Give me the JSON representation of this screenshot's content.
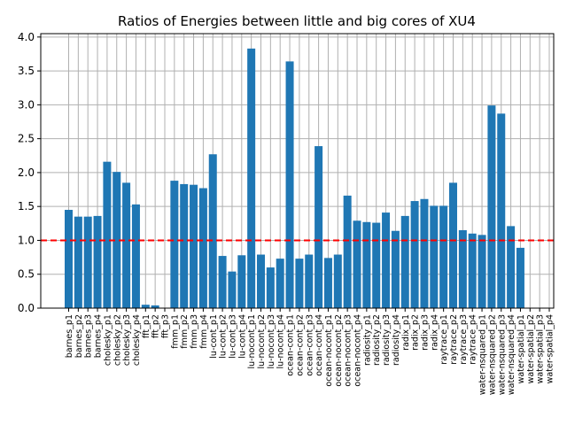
{
  "chart_data": {
    "type": "bar",
    "title": "Ratios of Energies between little and big cores of XU4",
    "xlabel": "",
    "ylabel": "",
    "ylim": [
      0,
      4.05
    ],
    "yticks": [
      "0.0",
      "0.5",
      "1.0",
      "1.5",
      "2.0",
      "2.5",
      "3.0",
      "3.5",
      "4.0"
    ],
    "grid": true,
    "bar_color": "#1f77b4",
    "reference_line": {
      "y": 1.0,
      "color": "#ff0000",
      "style": "dashed"
    },
    "categories": [
      "barnes_p1",
      "barnes_p2",
      "barnes_p3",
      "barnes_p4",
      "cholesky_p1",
      "cholesky_p2",
      "cholesky_p3",
      "cholesky_p4",
      "fft_p1",
      "fft_p2",
      "fft_p3",
      "fmm_p1",
      "fmm_p2",
      "fmm_p3",
      "fmm_p4",
      "lu-cont_p1",
      "lu-cont_p2",
      "lu-cont_p3",
      "lu-cont_p4",
      "lu-nocont_p1",
      "lu-nocont_p2",
      "lu-nocont_p3",
      "lu-nocont_p4",
      "ocean-cont_p1",
      "ocean-cont_p2",
      "ocean-cont_p3",
      "ocean-cont_p4",
      "ocean-nocont_p1",
      "ocean-nocont_p2",
      "ocean-nocont_p3",
      "ocean-nocont_p4",
      "radiosity_p1",
      "radiosity_p2",
      "radiosity_p3",
      "radiosity_p4",
      "radix_p1",
      "radix_p2",
      "radix_p3",
      "radix_p4",
      "raytrace_p1",
      "raytrace_p2",
      "raytrace_p3",
      "raytrace_p4",
      "water-nsquared_p1",
      "water-nsquared_p2",
      "water-nsquared_p3",
      "water-nsquared_p4",
      "water-spatial_p1",
      "water-spatial_p2",
      "water-spatial_p3",
      "water-spatial_p4"
    ],
    "values": [
      1.45,
      1.35,
      1.35,
      1.36,
      2.16,
      2.01,
      1.85,
      1.53,
      0.05,
      0.04,
      0.0,
      1.88,
      1.83,
      1.82,
      1.77,
      2.27,
      0.77,
      0.54,
      0.78,
      3.83,
      0.79,
      0.6,
      0.73,
      3.64,
      0.73,
      0.79,
      2.39,
      0.74,
      0.79,
      1.66,
      1.29,
      1.27,
      1.26,
      1.41,
      1.14,
      1.36,
      1.58,
      1.61,
      1.51,
      1.51,
      1.85,
      1.15,
      1.1,
      1.08,
      2.99,
      2.87,
      1.21,
      0.89,
      null,
      null,
      null
    ]
  }
}
